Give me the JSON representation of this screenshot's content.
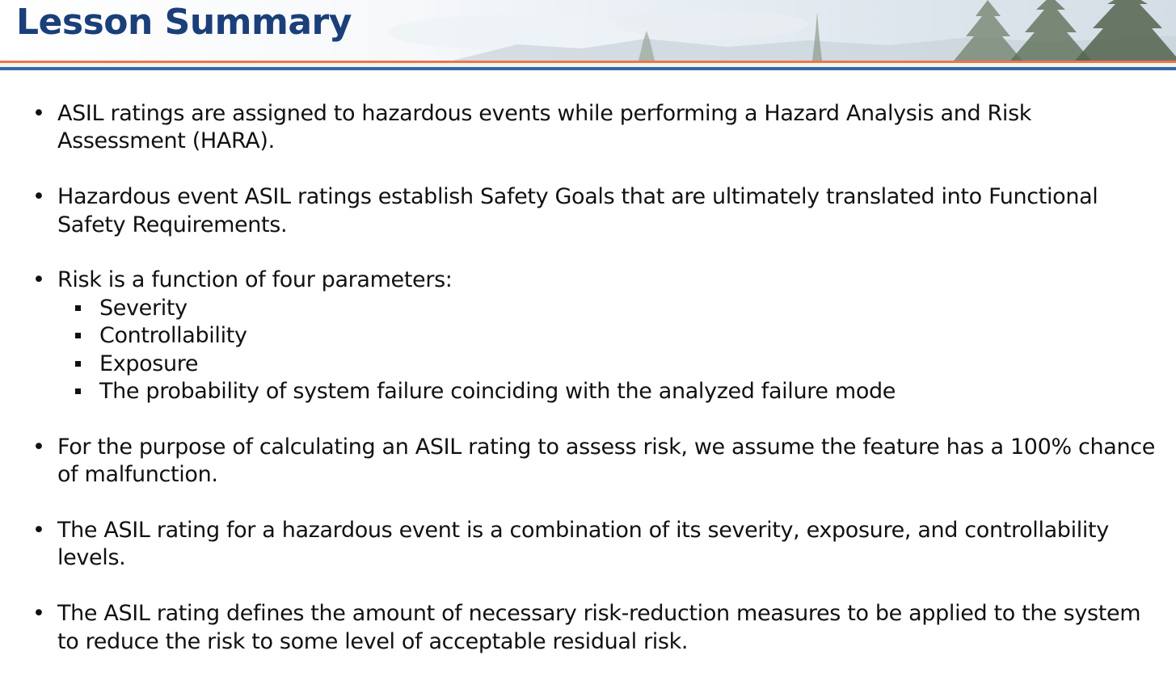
{
  "slide": {
    "title": "Lesson Summary",
    "colors": {
      "title": "#1a3f79",
      "rule_orange": "#e8784a",
      "rule_blue": "#2f68a6",
      "text": "#111111"
    },
    "header_image": "evergreen-trees-sky-banner"
  },
  "bullets": [
    {
      "text": "ASIL ratings are assigned to hazardous events while performing a Hazard Analysis and Risk Assessment (HARA)."
    },
    {
      "text": "Hazardous event ASIL ratings establish Safety Goals that are ultimately translated into Functional Safety Requirements."
    },
    {
      "text": "Risk is a function of four parameters:",
      "subitems": [
        "Severity",
        "Controllability",
        "Exposure",
        "The probability of system failure coinciding with the analyzed failure mode"
      ]
    },
    {
      "text": "For the purpose of calculating an ASIL rating to assess risk, we assume the feature has a 100% chance of malfunction."
    },
    {
      "text": "The ASIL rating for a hazardous event is a combination of its severity, exposure, and controllability levels."
    },
    {
      "text": "The ASIL rating defines the amount of necessary risk-reduction measures to be applied to the system to reduce the risk to some level of acceptable residual risk."
    }
  ]
}
